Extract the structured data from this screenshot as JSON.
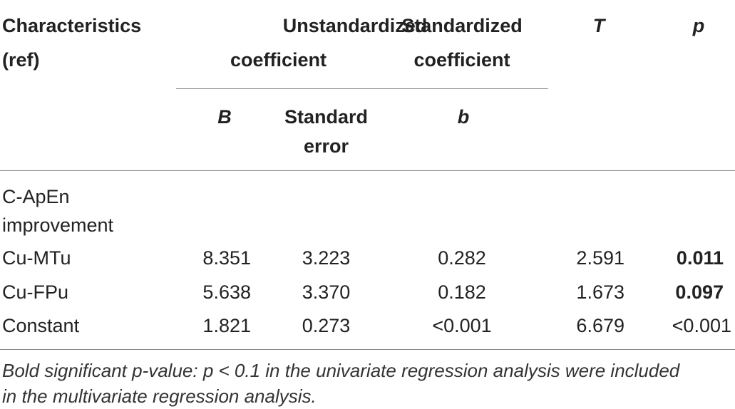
{
  "header": {
    "characteristics": [
      "Characteristics",
      "(ref)"
    ],
    "unstandardized": [
      "Unstandardized",
      "coefficient"
    ],
    "standardized": [
      "Standardized",
      "coefficient"
    ],
    "t": "T",
    "p": "p",
    "sub_b": "B",
    "sub_se": [
      "Standard",
      "error"
    ],
    "sub_beta": "b"
  },
  "group_label": [
    "C-ApEn",
    "improvement"
  ],
  "rows": [
    {
      "label": "Cu-MTu",
      "b": "8.351",
      "se": "3.223",
      "beta": "0.282",
      "t": "2.591",
      "p": "0.011",
      "p_bold": true
    },
    {
      "label": "Cu-FPu",
      "b": "5.638",
      "se": "3.370",
      "beta": "0.182",
      "t": "1.673",
      "p": "0.097",
      "p_bold": true
    },
    {
      "label": "Constant",
      "b": "1.821",
      "se": "0.273",
      "beta": "<0.001",
      "t": "6.679",
      "p": "<0.001",
      "p_bold": false
    }
  ],
  "footnote": [
    "Bold significant p-value: p < 0.1 in the univariate regression analysis were included",
    "in the multivariate regression analysis."
  ]
}
